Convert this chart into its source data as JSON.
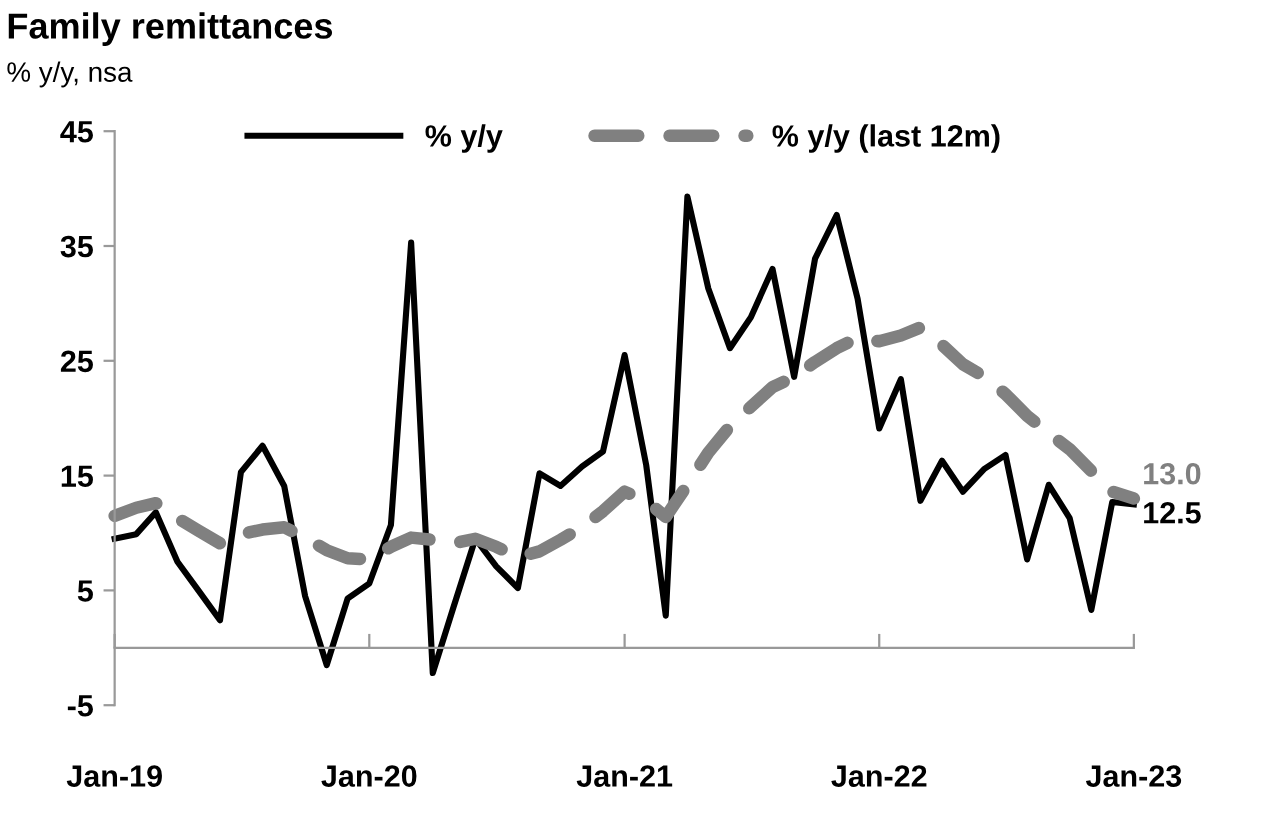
{
  "chart_data": {
    "type": "line",
    "title": "Family remittances",
    "subtitle": "% y/y, nsa",
    "x": [
      "2019-01",
      "2019-02",
      "2019-03",
      "2019-04",
      "2019-05",
      "2019-06",
      "2019-07",
      "2019-08",
      "2019-09",
      "2019-10",
      "2019-11",
      "2019-12",
      "2020-01",
      "2020-02",
      "2020-03",
      "2020-04",
      "2020-05",
      "2020-06",
      "2020-07",
      "2020-08",
      "2020-09",
      "2020-10",
      "2020-11",
      "2020-12",
      "2021-01",
      "2021-02",
      "2021-03",
      "2021-04",
      "2021-05",
      "2021-06",
      "2021-07",
      "2021-08",
      "2021-09",
      "2021-10",
      "2021-11",
      "2021-12",
      "2022-01",
      "2022-02",
      "2022-03",
      "2022-04",
      "2022-05",
      "2022-06",
      "2022-07",
      "2022-08",
      "2022-09",
      "2022-10",
      "2022-11",
      "2022-12",
      "2023-01"
    ],
    "series": [
      {
        "name": "% y/y",
        "color": "#000000",
        "line_style": "solid",
        "values": [
          9.5,
          9.9,
          11.8,
          7.5,
          5.0,
          2.4,
          15.3,
          17.6,
          14.1,
          4.5,
          -1.5,
          4.3,
          5.6,
          10.7,
          35.3,
          -2.2,
          3.6,
          9.5,
          7.1,
          5.2,
          15.2,
          14.1,
          15.8,
          17.1,
          25.5,
          15.9,
          2.8,
          39.3,
          31.3,
          26.1,
          28.8,
          33.0,
          23.6,
          33.9,
          37.7,
          30.4,
          19.1,
          23.4,
          12.8,
          16.3,
          13.6,
          15.6,
          16.8,
          7.7,
          14.2,
          11.3,
          3.3,
          12.7,
          12.5
        ],
        "value_labels": [
          null,
          null,
          null,
          null,
          null,
          null,
          null,
          null,
          null,
          null,
          null,
          null,
          null,
          null,
          null,
          null,
          null,
          null,
          null,
          null,
          null,
          null,
          null,
          null,
          null,
          null,
          null,
          null,
          null,
          null,
          null,
          null,
          null,
          null,
          null,
          null,
          null,
          null,
          null,
          null,
          null,
          null,
          null,
          null,
          null,
          null,
          null,
          null,
          "12.5"
        ]
      },
      {
        "name": "% y/y (last 12m)",
        "color": "#808080",
        "line_style": "dashed",
        "values": [
          11.5,
          12.2,
          12.6,
          11.3,
          10.2,
          9.1,
          9.9,
          10.3,
          10.5,
          9.6,
          8.5,
          7.8,
          7.7,
          8.8,
          9.6,
          9.4,
          9.1,
          9.5,
          8.8,
          7.9,
          8.4,
          9.4,
          10.5,
          11.9,
          13.6,
          12.8,
          11.4,
          14.2,
          17.0,
          19.3,
          21.0,
          22.7,
          23.6,
          24.9,
          26.1,
          27.0,
          26.7,
          27.2,
          27.9,
          26.4,
          24.7,
          23.6,
          22.1,
          20.2,
          18.7,
          17.3,
          15.4,
          13.6,
          13.0
        ],
        "value_labels": [
          null,
          null,
          null,
          null,
          null,
          null,
          null,
          null,
          null,
          null,
          null,
          null,
          null,
          null,
          null,
          null,
          null,
          null,
          null,
          null,
          null,
          null,
          null,
          null,
          null,
          null,
          null,
          null,
          null,
          null,
          null,
          null,
          null,
          null,
          null,
          null,
          null,
          null,
          null,
          null,
          null,
          null,
          null,
          null,
          null,
          null,
          null,
          null,
          "13.0"
        ]
      }
    ],
    "xlim": [
      "2019-01",
      "2023-01"
    ],
    "xticks": [
      {
        "value": "2019-01",
        "label": "Jan-19"
      },
      {
        "value": "2020-01",
        "label": "Jan-20"
      },
      {
        "value": "2021-01",
        "label": "Jan-21"
      },
      {
        "value": "2022-01",
        "label": "Jan-22"
      },
      {
        "value": "2023-01",
        "label": "Jan-23"
      }
    ],
    "ylim": [
      -5,
      45
    ],
    "yticks": [
      -5,
      5,
      15,
      25,
      35,
      45
    ],
    "legend": "top",
    "grid": false,
    "marker": "none"
  }
}
